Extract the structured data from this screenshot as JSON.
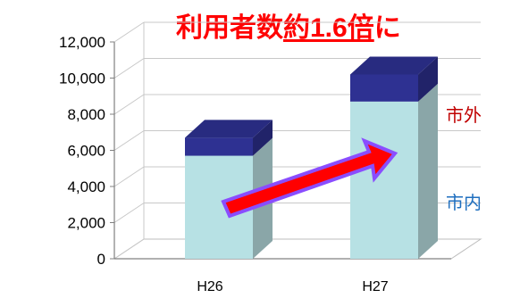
{
  "headline": {
    "text_before": "利用者数",
    "text_underlined": "約1.6倍",
    "text_after": "に",
    "color": "#ff0000"
  },
  "chart_data": {
    "type": "bar",
    "style": "3d-stacked-column",
    "categories": [
      "H26",
      "H27"
    ],
    "series": [
      {
        "name": "市内",
        "values": [
          5700,
          8700
        ],
        "color": "#b7e1e4"
      },
      {
        "name": "市外",
        "values": [
          1000,
          1500
        ],
        "color": "#2e3192"
      }
    ],
    "ylim": [
      0,
      12000
    ],
    "yticks": [
      "0",
      "2,000",
      "4,000",
      "6,000",
      "8,000",
      "10,000",
      "12,000"
    ],
    "grid": true,
    "series_label_colors": {
      "市内": "#1f6fbf",
      "市外": "#c00000"
    },
    "trend_arrow": {
      "fill": "#ff0000",
      "outline": "#8a4dff"
    }
  }
}
